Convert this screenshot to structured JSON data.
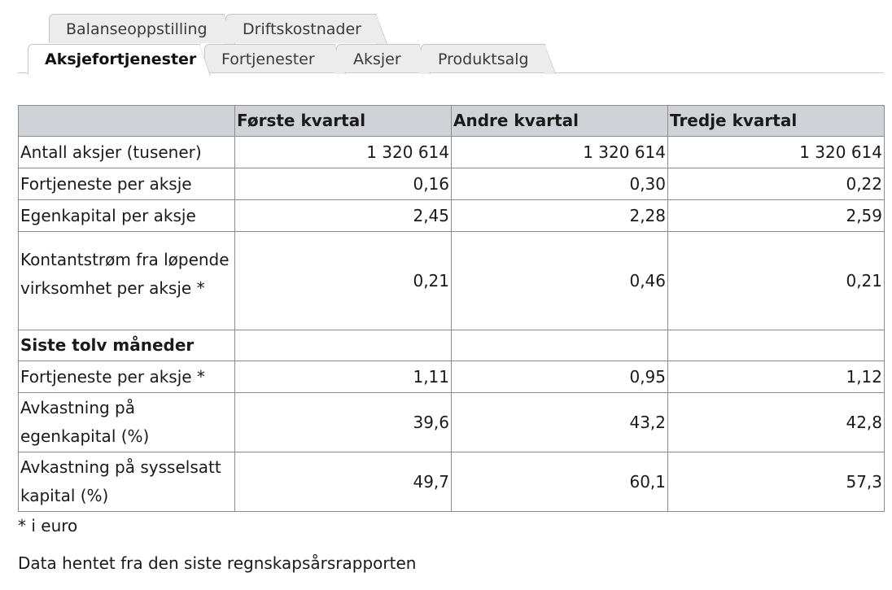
{
  "tabs": {
    "row1": [
      {
        "label": "Balanseoppstilling"
      },
      {
        "label": "Driftskostnader"
      }
    ],
    "row2": [
      {
        "label": "Aksjefortjenester",
        "active": true
      },
      {
        "label": "Fortjenester"
      },
      {
        "label": "Aksjer"
      },
      {
        "label": "Produktsalg"
      }
    ]
  },
  "table": {
    "headers": [
      "",
      "Første kvartal",
      "Andre kvartal",
      "Tredje kvartal"
    ],
    "rows": [
      {
        "label": "Antall aksjer (tusener)",
        "values": [
          "1 320 614",
          "1 320 614",
          "1 320 614"
        ]
      },
      {
        "label": "Fortjeneste per aksje",
        "values": [
          "0,16",
          "0,30",
          "0,22"
        ]
      },
      {
        "label": "Egenkapital per aksje",
        "values": [
          "2,45",
          "2,28",
          "2,59"
        ]
      },
      {
        "label": "Kontantstrøm fra løpende virksomhet per aksje *",
        "values": [
          "0,21",
          "0,46",
          "0,21"
        ]
      },
      {
        "label": "Siste tolv måneder",
        "values": [
          "",
          "",
          ""
        ],
        "section": true
      },
      {
        "label": "Fortjeneste per aksje *",
        "values": [
          "1,11",
          "0,95",
          "1,12"
        ]
      },
      {
        "label": "Avkastning på egenkapital (%)",
        "values": [
          "39,6",
          "43,2",
          "42,8"
        ]
      },
      {
        "label": "Avkastning på sysselsatt kapital (%)",
        "values": [
          "49,7",
          "60,1",
          "57,3"
        ]
      }
    ]
  },
  "footnote": "* i euro",
  "source": "Data hentet fra den siste regnskapsårsrapporten"
}
